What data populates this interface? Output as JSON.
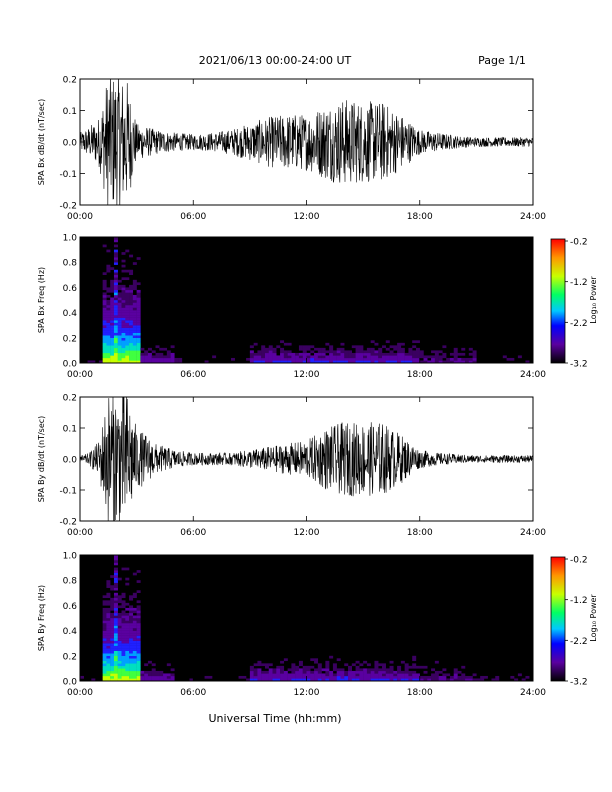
{
  "header": {
    "title": "2021/06/13  00:00-24:00 UT",
    "page": "Page 1/1"
  },
  "xlabel": "Universal Time (hh:mm)",
  "colorbar": {
    "label": "Log₁₀ Power",
    "ticks": [
      "-0.2",
      "-1.2",
      "-2.2",
      "-3.2"
    ],
    "range": [
      -3.2,
      -0.2
    ]
  },
  "chart_data": [
    {
      "type": "line",
      "ylabel": "SPA Bx dB/dt (nT/sec)",
      "xlim": [
        "00:00",
        "24:00"
      ],
      "ylim": [
        -0.2,
        0.2
      ],
      "xticks": [
        "00:00",
        "06:00",
        "12:00",
        "18:00",
        "24:00"
      ],
      "yticks": [
        "0.2",
        "0.1",
        "0.0",
        "-0.1",
        "-0.2"
      ],
      "envelope": {
        "hours": [
          0,
          0.5,
          1,
          1.5,
          2,
          2.5,
          3,
          3.5,
          4,
          5,
          6,
          7,
          8,
          9,
          10,
          11,
          12,
          13,
          14,
          15,
          16,
          17,
          18,
          19,
          20,
          21,
          22,
          23,
          24
        ],
        "amplitude": [
          0.03,
          0.05,
          0.08,
          0.22,
          0.22,
          0.2,
          0.06,
          0.05,
          0.04,
          0.03,
          0.025,
          0.03,
          0.04,
          0.06,
          0.08,
          0.09,
          0.09,
          0.12,
          0.14,
          0.13,
          0.13,
          0.09,
          0.04,
          0.03,
          0.02,
          0.015,
          0.015,
          0.015,
          0.015
        ]
      }
    },
    {
      "type": "heatmap",
      "ylabel": "SPA Bx Freq (Hz)",
      "xlim": [
        "00:00",
        "24:00"
      ],
      "ylim": [
        0.0,
        1.0
      ],
      "xticks": [
        "00:00",
        "06:00",
        "12:00",
        "18:00",
        "24:00"
      ],
      "yticks": [
        "1.0",
        "0.8",
        "0.6",
        "0.4",
        "0.2",
        "0.0"
      ]
    },
    {
      "type": "line",
      "ylabel": "SPA By dB/dt (nT/sec)",
      "xlim": [
        "00:00",
        "24:00"
      ],
      "ylim": [
        -0.2,
        0.2
      ],
      "xticks": [
        "00:00",
        "06:00",
        "12:00",
        "18:00",
        "24:00"
      ],
      "yticks": [
        "0.2",
        "0.1",
        "0.0",
        "-0.1",
        "-0.2"
      ],
      "envelope": {
        "hours": [
          0,
          0.5,
          1,
          1.5,
          2,
          2.5,
          3,
          3.5,
          4,
          5,
          6,
          7,
          8,
          9,
          10,
          11,
          12,
          13,
          14,
          15,
          16,
          17,
          18,
          19,
          20,
          21,
          22,
          23,
          24
        ],
        "amplitude": [
          0.01,
          0.02,
          0.06,
          0.22,
          0.22,
          0.22,
          0.1,
          0.08,
          0.05,
          0.03,
          0.02,
          0.02,
          0.02,
          0.03,
          0.04,
          0.05,
          0.06,
          0.1,
          0.12,
          0.12,
          0.12,
          0.08,
          0.03,
          0.02,
          0.015,
          0.012,
          0.012,
          0.012,
          0.012
        ]
      }
    },
    {
      "type": "heatmap",
      "ylabel": "SPA By Freq (Hz)",
      "xlim": [
        "00:00",
        "24:00"
      ],
      "ylim": [
        0.0,
        1.0
      ],
      "xticks": [
        "00:00",
        "06:00",
        "12:00",
        "18:00",
        "24:00"
      ],
      "yticks": [
        "1.0",
        "0.8",
        "0.6",
        "0.4",
        "0.2",
        "0.0"
      ]
    }
  ]
}
